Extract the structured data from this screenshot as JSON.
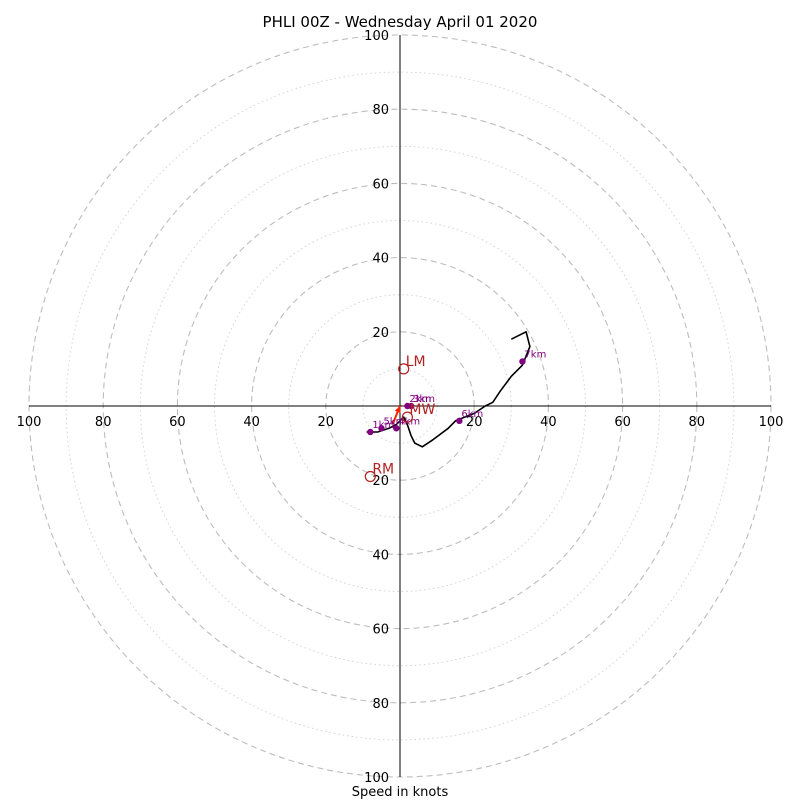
{
  "chart_data": {
    "type": "hodograph",
    "title": "PHLI 00Z - Wednesday April 01 2020",
    "xlabel": "Speed in knots",
    "speed_max": 100,
    "ring_step_major": 20,
    "ring_step_minor": 10,
    "tick_labels": {
      "x_left": [
        "100",
        "80",
        "60",
        "40",
        "20"
      ],
      "x_right": [
        "20",
        "40",
        "60",
        "80",
        "100"
      ],
      "y_top": [
        "100",
        "80",
        "60",
        "40",
        "20"
      ],
      "y_bottom": [
        "20",
        "40",
        "60",
        "80",
        "100"
      ]
    },
    "hodograph_trace": [
      [
        -9,
        -7
      ],
      [
        -6,
        -7
      ],
      [
        -3,
        -6
      ],
      [
        -1,
        -5
      ],
      [
        1,
        -3
      ],
      [
        2,
        -5
      ],
      [
        3,
        -8
      ],
      [
        4,
        -10
      ],
      [
        6,
        -11
      ],
      [
        9,
        -9
      ],
      [
        13,
        -6
      ],
      [
        15,
        -4
      ],
      [
        20,
        -2
      ],
      [
        23,
        0
      ],
      [
        25,
        1
      ],
      [
        27,
        4
      ],
      [
        30,
        8
      ],
      [
        33,
        11
      ],
      [
        35,
        16
      ],
      [
        34,
        20
      ],
      [
        30,
        18
      ]
    ],
    "height_markers": [
      {
        "label": "1km",
        "u": -8,
        "v": -7
      },
      {
        "label": "2km",
        "u": 2,
        "v": 0
      },
      {
        "label": "3km",
        "u": 3,
        "v": 0
      },
      {
        "label": "4km",
        "u": -1,
        "v": -6
      },
      {
        "label": "5km",
        "u": -5,
        "v": -6
      },
      {
        "label": "6km",
        "u": 16,
        "v": -4
      },
      {
        "label": "7km",
        "u": 33,
        "v": 12
      }
    ],
    "storm_motion": [
      {
        "label": "LM",
        "u": 1,
        "v": 10
      },
      {
        "label": "MW",
        "u": 2,
        "v": -3
      },
      {
        "label": "RM",
        "u": -8,
        "v": -19
      }
    ],
    "shear_arrow": {
      "from": [
        -2,
        -5
      ],
      "to": [
        0,
        0
      ]
    },
    "colors": {
      "trace": "#000000",
      "markers": "#800080",
      "storm_motion": "#b22222",
      "arrow": "#ff2200",
      "ring_major": "#bdbdbd",
      "ring_minor": "#d3d3d3"
    }
  }
}
